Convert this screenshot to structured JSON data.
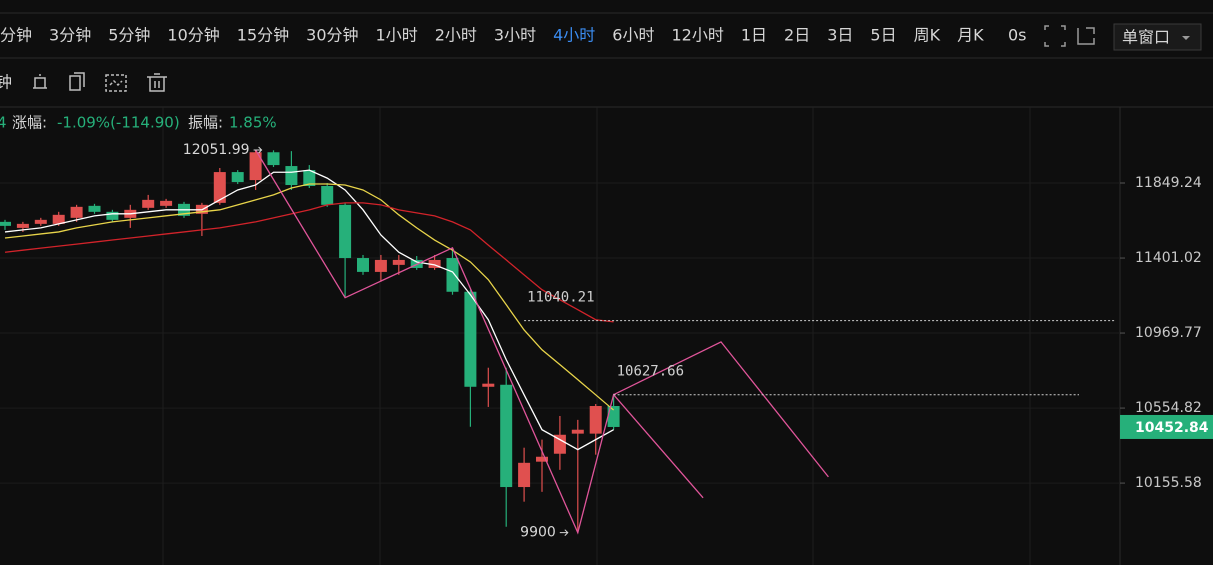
{
  "toolbar": {
    "intervals": [
      "分钟",
      "3分钟",
      "5分钟",
      "10分钟",
      "15分钟",
      "30分钟",
      "1小时",
      "2小时",
      "3小时",
      "4小时",
      "6小时",
      "12小时",
      "1日",
      "2日",
      "3日",
      "5日",
      "周K",
      "月K"
    ],
    "active_index": 9,
    "countdown": "0s",
    "window_mode": "单窗口",
    "drawing_label": "钟"
  },
  "info": {
    "prefix": "4",
    "change_label": "涨幅:",
    "change_value": "-1.09%(-114.90)",
    "amplitude_label": "振幅:",
    "amplitude_value": "1.85%"
  },
  "chart_data": {
    "type": "candlestick",
    "categories": [
      null,
      null,
      null,
      null,
      null,
      null,
      null,
      null,
      null,
      null,
      null,
      null,
      null,
      null,
      null,
      null,
      null,
      null,
      null,
      null,
      null,
      null,
      null,
      null,
      null,
      null,
      null,
      null,
      null,
      null,
      null,
      null,
      null,
      null,
      null
    ],
    "candles": {
      "open": [
        11615,
        11579,
        11603,
        11603,
        11639,
        11711,
        11675,
        11639,
        11699,
        11711,
        11723,
        11663,
        11729,
        11916,
        11867,
        12038,
        11953,
        11928,
        11831,
        11717,
        11401,
        11320,
        11361,
        11390,
        11343,
        11401,
        11205,
        10671,
        10682,
        10135,
        10268,
        10310,
        10417,
        10417,
        10566
      ],
      "high": [
        11627,
        11615,
        11639,
        11675,
        11717,
        11723,
        11687,
        11717,
        11777,
        11753,
        11735,
        11729,
        11941,
        11928,
        12051.99,
        12050,
        12045,
        11959,
        11849,
        11729,
        11419,
        11419,
        11419,
        11413,
        11419,
        11461,
        11217,
        10776,
        10776,
        10342,
        10385,
        10512,
        10491,
        10577,
        10627.66
      ],
      "low": [
        11567,
        11555,
        11591,
        11591,
        11615,
        11663,
        11615,
        11579,
        11687,
        11699,
        11639,
        11531,
        11717,
        11843,
        11807,
        11947,
        11807,
        11819,
        11705,
        11171,
        11303,
        11263,
        11303,
        11332,
        11332,
        11188,
        10454,
        10561,
        9930,
        10059,
        10110,
        10225,
        9900,
        10305,
        10438
      ],
      "close": [
        11591,
        11603,
        11627,
        11657,
        11705,
        11675,
        11627,
        11687,
        11747,
        11741,
        11651,
        11717,
        11916,
        11855,
        12038,
        11959,
        11837,
        11831,
        11717,
        11401,
        11320,
        11390,
        11390,
        11343,
        11390,
        11205,
        10671,
        10688,
        10135,
        10262,
        10294,
        10411,
        10438,
        10566,
        10452.84
      ]
    },
    "up_color": "#e0504f",
    "down_color": "#26b07a",
    "series": [
      {
        "color": "#ffffff",
        "values": [
          11555,
          11567,
          11579,
          11603,
          11627,
          11651,
          11663,
          11663,
          11675,
          11687,
          11687,
          11687,
          11747,
          11807,
          11837,
          11915,
          11915,
          11928,
          11879,
          11807,
          11687,
          11537,
          11435,
          11378,
          11361,
          11320,
          11188,
          11045,
          10821,
          10627,
          10438,
          10385,
          10332,
          10385,
          10438
        ]
      },
      {
        "color": "#e8d44a",
        "values": [
          11519,
          11531,
          11543,
          11555,
          11579,
          11597,
          11615,
          11627,
          11639,
          11651,
          11663,
          11675,
          11687,
          11717,
          11747,
          11777,
          11819,
          11843,
          11843,
          11837,
          11807,
          11747,
          11657,
          11579,
          11507,
          11447,
          11378,
          11275,
          11131,
          10987,
          10876,
          10793,
          10710,
          10627,
          10544
        ]
      },
      {
        "color": "#d2232a",
        "values": [
          11435,
          11447,
          11459,
          11471,
          11483,
          11495,
          11507,
          11519,
          11531,
          11543,
          11555,
          11567,
          11579,
          11597,
          11615,
          11639,
          11663,
          11687,
          11717,
          11729,
          11729,
          11717,
          11687,
          11669,
          11651,
          11615,
          11567,
          11477,
          11390,
          11303,
          11217,
          11159,
          11102,
          11045,
          11033
        ]
      }
    ],
    "zigzag": [
      {
        "color": "#e0559a",
        "x": [
          14,
          19,
          25,
          32,
          34,
          39
        ],
        "y": [
          12051.99,
          11171,
          11461,
          9900,
          10627.66,
          10079
        ]
      },
      {
        "color": "#e0559a",
        "x": [
          34,
          40,
          46
        ],
        "y": [
          10627.66,
          10920,
          10188
        ]
      }
    ],
    "levels": [
      {
        "value": 11040.21,
        "from": 29,
        "to": 62
      },
      {
        "value": 10627.66,
        "from": 34,
        "to": 60
      }
    ],
    "log_scale": true,
    "grid": true,
    "ylim": [
      9777,
      12315
    ],
    "yticks": [
      11849.24,
      11401.02,
      10969.77,
      10554.82,
      10155.58
    ]
  }
}
